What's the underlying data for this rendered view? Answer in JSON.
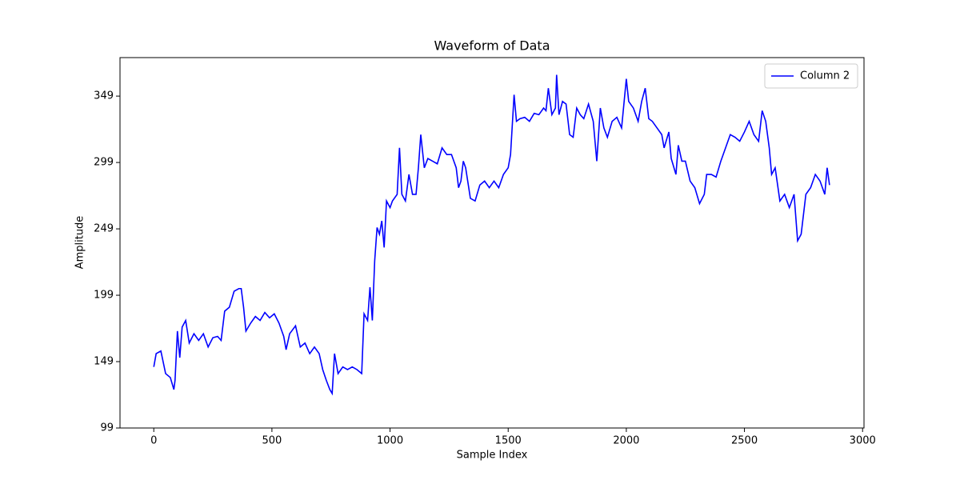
{
  "chart_data": {
    "type": "line",
    "title": "Waveform of Data",
    "xlabel": "Sample Index",
    "ylabel": "Amplitude",
    "legend": "upper right",
    "x": [
      0,
      10,
      30,
      50,
      70,
      85,
      90,
      100,
      110,
      120,
      135,
      150,
      170,
      190,
      210,
      230,
      250,
      270,
      285,
      300,
      320,
      340,
      360,
      370,
      380,
      390,
      410,
      430,
      450,
      470,
      490,
      510,
      530,
      550,
      560,
      575,
      600,
      620,
      640,
      660,
      680,
      700,
      715,
      730,
      745,
      755,
      765,
      780,
      800,
      820,
      840,
      860,
      880,
      890,
      905,
      915,
      925,
      935,
      945,
      955,
      965,
      975,
      985,
      1000,
      1010,
      1030,
      1040,
      1050,
      1065,
      1080,
      1095,
      1110,
      1120,
      1130,
      1145,
      1160,
      1180,
      1200,
      1220,
      1240,
      1260,
      1280,
      1290,
      1300,
      1310,
      1320,
      1340,
      1360,
      1380,
      1400,
      1420,
      1440,
      1460,
      1480,
      1500,
      1510,
      1525,
      1535,
      1550,
      1570,
      1590,
      1610,
      1630,
      1650,
      1660,
      1670,
      1685,
      1700,
      1705,
      1715,
      1730,
      1745,
      1760,
      1775,
      1790,
      1805,
      1820,
      1840,
      1860,
      1875,
      1890,
      1905,
      1920,
      1940,
      1960,
      1980,
      2000,
      2010,
      2030,
      2050,
      2065,
      2080,
      2095,
      2110,
      2130,
      2150,
      2160,
      2180,
      2190,
      2210,
      2220,
      2235,
      2250,
      2270,
      2290,
      2310,
      2330,
      2340,
      2360,
      2380,
      2400,
      2420,
      2440,
      2460,
      2480,
      2500,
      2520,
      2540,
      2560,
      2575,
      2590,
      2605,
      2615,
      2630,
      2650,
      2670,
      2690,
      2710,
      2725,
      2740,
      2760,
      2780,
      2800,
      2820,
      2840,
      2850,
      2860
    ],
    "series": [
      {
        "name": "Column 2",
        "color": "#0000ff",
        "values": [
          145,
          155,
          157,
          140,
          137,
          128,
          135,
          172,
          152,
          175,
          180,
          163,
          170,
          165,
          170,
          160,
          167,
          168,
          165,
          187,
          190,
          202,
          204,
          204,
          190,
          172,
          178,
          183,
          180,
          186,
          182,
          185,
          178,
          168,
          158,
          170,
          176,
          160,
          163,
          155,
          160,
          155,
          143,
          135,
          128,
          125,
          155,
          140,
          145,
          143,
          145,
          143,
          140,
          185,
          180,
          205,
          180,
          225,
          250,
          245,
          255,
          235,
          270,
          265,
          270,
          275,
          310,
          275,
          270,
          290,
          275,
          275,
          295,
          320,
          295,
          302,
          300,
          298,
          310,
          305,
          305,
          295,
          280,
          285,
          300,
          295,
          272,
          270,
          282,
          285,
          280,
          285,
          280,
          290,
          295,
          305,
          350,
          330,
          332,
          333,
          330,
          336,
          335,
          340,
          338,
          355,
          335,
          340,
          365,
          335,
          345,
          343,
          320,
          318,
          340,
          335,
          332,
          343,
          330,
          300,
          340,
          325,
          318,
          330,
          333,
          325,
          362,
          345,
          340,
          330,
          345,
          355,
          332,
          330,
          325,
          320,
          310,
          322,
          302,
          290,
          312,
          300,
          300,
          285,
          280,
          268,
          275,
          290,
          290,
          288,
          300,
          310,
          320,
          318,
          315,
          322,
          330,
          320,
          315,
          338,
          330,
          310,
          290,
          295,
          270,
          275,
          265,
          275,
          240,
          245,
          275,
          280,
          290,
          285,
          275,
          295,
          282
        ]
      }
    ],
    "xlim": [
      -143,
      3006
    ],
    "ylim": [
      99,
      378
    ],
    "xticks": [
      0,
      500,
      1000,
      1500,
      2000,
      2500,
      3000
    ],
    "yticks": [
      99,
      149,
      199,
      249,
      299,
      349
    ]
  }
}
